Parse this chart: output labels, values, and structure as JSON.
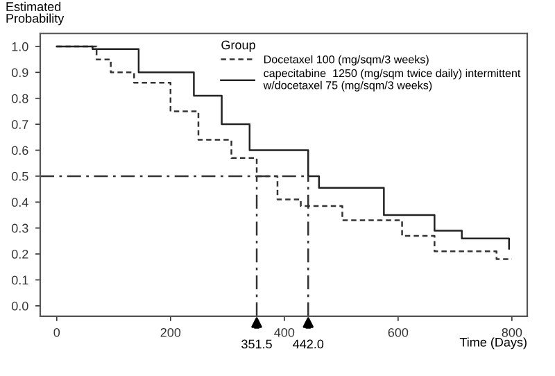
{
  "chart_data": {
    "type": "step",
    "xlabel": "Time (Days)",
    "ylabel": "Estimated\nProbability",
    "legend_title": "Group",
    "legend": "top right",
    "series": [
      {
        "name": "Docetaxel 100 (mg/sqm/3 weeks)",
        "color": "#333333",
        "line_style": "dashed",
        "x": [
          0,
          70,
          95,
          136,
          200,
          249,
          307,
          351.5,
          388,
          429,
          502,
          607,
          664,
          754,
          773,
          800
        ],
        "values": [
          1.0,
          0.95,
          0.9,
          0.86,
          0.75,
          0.64,
          0.57,
          0.5,
          0.41,
          0.385,
          0.33,
          0.27,
          0.21,
          0.21,
          0.18,
          0.18
        ]
      },
      {
        "name": "capecitabine  1250 (mg/sqm twice daily) intermittent\nw/docetaxel 75 (mg/sqm/3 weeks)",
        "color": "#222222",
        "line_style": "solid",
        "x": [
          0,
          63,
          144,
          241,
          290,
          339,
          442,
          461,
          575,
          664,
          712,
          754,
          788,
          795
        ],
        "values": [
          1.0,
          0.99,
          0.9,
          0.81,
          0.7,
          0.6,
          0.5,
          0.455,
          0.35,
          0.29,
          0.26,
          0.26,
          0.26,
          0.22
        ]
      }
    ],
    "ref_lines": [
      {
        "axis": "y",
        "value": 0.5,
        "line_style": "dashdot"
      },
      {
        "axis": "x",
        "value": 351.5,
        "label": "351.5",
        "line_style": "dashdot"
      },
      {
        "axis": "x",
        "value": 442.0,
        "label": "442.0",
        "line_style": "dashdot"
      }
    ],
    "xlim": [
      -29,
      827
    ],
    "ylim": [
      -0.04,
      1.05
    ],
    "xticks": [
      0,
      200,
      400,
      600,
      800
    ],
    "yticks": [
      {
        "value": 0,
        "label": "0.0"
      },
      {
        "value": 0.1,
        "label": "0.1"
      },
      {
        "value": 0.2,
        "label": "0.2"
      },
      {
        "value": 0.3,
        "label": "0.3"
      },
      {
        "value": 0.4,
        "label": "0.4"
      },
      {
        "value": 0.5,
        "label": "0.5"
      },
      {
        "value": 0.6,
        "label": "0.6"
      },
      {
        "value": 0.7,
        "label": "0.7"
      },
      {
        "value": 0.8,
        "label": "0.8"
      },
      {
        "value": 0.9,
        "label": "0.9"
      },
      {
        "value": 1.0,
        "label": "1.0"
      }
    ],
    "grid": false
  }
}
